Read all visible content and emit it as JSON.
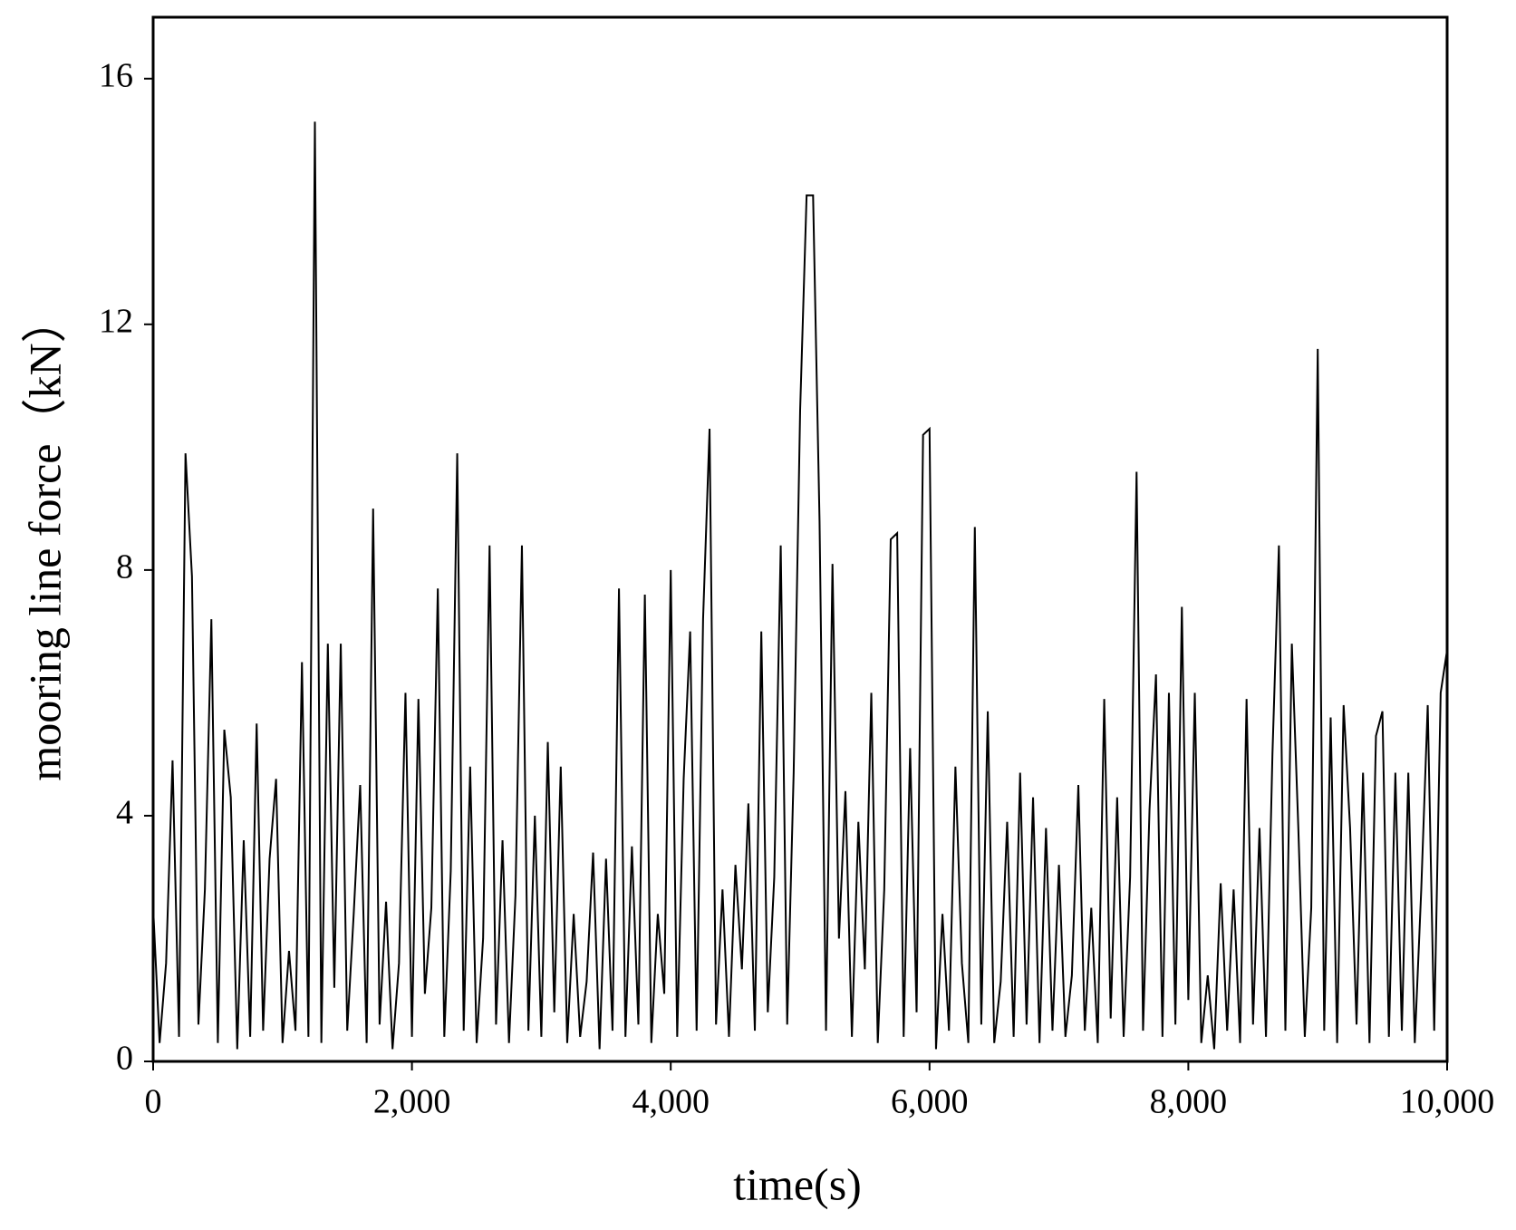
{
  "chart_data": {
    "type": "line",
    "xlabel": "time(s)",
    "ylabel": "mooring line force（kN）",
    "x": [
      0,
      50,
      100,
      150,
      200,
      250,
      300,
      350,
      400,
      450,
      500,
      550,
      600,
      650,
      700,
      750,
      800,
      850,
      900,
      950,
      1000,
      1050,
      1100,
      1150,
      1200,
      1250,
      1300,
      1350,
      1400,
      1450,
      1500,
      1550,
      1600,
      1650,
      1700,
      1750,
      1800,
      1850,
      1900,
      1950,
      2000,
      2050,
      2100,
      2150,
      2200,
      2250,
      2300,
      2350,
      2400,
      2450,
      2500,
      2550,
      2600,
      2650,
      2700,
      2750,
      2800,
      2850,
      2900,
      2950,
      3000,
      3050,
      3100,
      3150,
      3200,
      3250,
      3300,
      3350,
      3400,
      3450,
      3500,
      3550,
      3600,
      3650,
      3700,
      3750,
      3800,
      3850,
      3900,
      3950,
      4000,
      4050,
      4100,
      4150,
      4200,
      4250,
      4300,
      4350,
      4400,
      4450,
      4500,
      4550,
      4600,
      4650,
      4700,
      4750,
      4800,
      4850,
      4900,
      4950,
      5000,
      5050,
      5100,
      5150,
      5200,
      5250,
      5300,
      5350,
      5400,
      5450,
      5500,
      5550,
      5600,
      5650,
      5700,
      5750,
      5800,
      5850,
      5900,
      5950,
      6000,
      6050,
      6100,
      6150,
      6200,
      6250,
      6300,
      6350,
      6400,
      6450,
      6500,
      6550,
      6600,
      6650,
      6700,
      6750,
      6800,
      6850,
      6900,
      6950,
      7000,
      7050,
      7100,
      7150,
      7200,
      7250,
      7300,
      7350,
      7400,
      7450,
      7500,
      7550,
      7600,
      7650,
      7700,
      7750,
      7800,
      7850,
      7900,
      7950,
      8000,
      8050,
      8100,
      8150,
      8200,
      8250,
      8300,
      8350,
      8400,
      8450,
      8500,
      8550,
      8600,
      8650,
      8700,
      8750,
      8800,
      8850,
      8900,
      8950,
      9000,
      9050,
      9100,
      9150,
      9200,
      9250,
      9300,
      9350,
      9400,
      9450,
      9500,
      9550,
      9600,
      9650,
      9700,
      9750,
      9800,
      9850,
      9900,
      9950,
      10000
    ],
    "series": [
      {
        "name": "mooring line force",
        "color": "#000000",
        "values": [
          2.5,
          0.3,
          1.6,
          4.9,
          0.4,
          9.9,
          7.9,
          0.6,
          2.8,
          7.2,
          0.3,
          5.4,
          4.3,
          0.2,
          3.6,
          0.4,
          5.5,
          0.5,
          3.3,
          4.6,
          0.3,
          1.8,
          0.5,
          6.5,
          0.4,
          15.3,
          0.3,
          6.8,
          1.2,
          6.8,
          0.5,
          2.4,
          4.5,
          0.3,
          9.0,
          0.6,
          2.6,
          0.2,
          1.6,
          6.0,
          0.4,
          5.9,
          1.1,
          2.5,
          7.7,
          0.4,
          3.1,
          9.9,
          0.5,
          4.8,
          0.3,
          2.0,
          8.4,
          0.6,
          3.6,
          0.3,
          2.7,
          8.4,
          0.5,
          4.0,
          0.4,
          5.2,
          0.8,
          4.8,
          0.3,
          2.4,
          0.4,
          1.3,
          3.4,
          0.2,
          3.3,
          0.5,
          7.7,
          0.4,
          3.5,
          0.6,
          7.6,
          0.3,
          2.4,
          1.1,
          8.0,
          0.4,
          4.6,
          7.0,
          0.5,
          7.2,
          10.3,
          0.6,
          2.8,
          0.4,
          3.2,
          1.5,
          4.2,
          0.5,
          7.0,
          0.8,
          3.0,
          8.4,
          0.6,
          4.7,
          10.6,
          14.1,
          14.1,
          8.8,
          0.5,
          8.1,
          2.0,
          4.4,
          0.4,
          3.9,
          1.5,
          6.0,
          0.3,
          2.8,
          8.5,
          8.6,
          0.4,
          5.1,
          0.8,
          10.2,
          10.3,
          0.2,
          2.4,
          0.5,
          4.8,
          1.6,
          0.3,
          8.7,
          0.6,
          5.7,
          0.3,
          1.3,
          3.9,
          0.4,
          4.7,
          0.6,
          4.3,
          0.3,
          3.8,
          0.5,
          3.2,
          0.4,
          1.4,
          4.5,
          0.5,
          2.5,
          0.3,
          5.9,
          0.7,
          4.3,
          0.4,
          3.0,
          9.6,
          0.5,
          4.1,
          6.3,
          0.4,
          6.0,
          0.6,
          7.4,
          1.0,
          6.0,
          0.3,
          1.4,
          0.2,
          2.9,
          0.5,
          2.8,
          0.3,
          5.9,
          0.6,
          3.8,
          0.4,
          5.0,
          8.4,
          0.5,
          6.8,
          3.8,
          0.4,
          2.5,
          11.6,
          0.5,
          5.6,
          0.3,
          5.8,
          3.8,
          0.6,
          4.7,
          0.3,
          5.3,
          5.7,
          0.4,
          4.7,
          0.5,
          4.7,
          0.3,
          2.8,
          5.8,
          0.5,
          6.0,
          6.7
        ]
      }
    ],
    "xlim": [
      0,
      10000
    ],
    "xticks": [
      0,
      {
        "value": 2000,
        "label": "2,000"
      },
      {
        "value": 4000,
        "label": "4,000"
      },
      {
        "value": 6000,
        "label": "6,000"
      },
      {
        "value": 8000,
        "label": "8,000"
      },
      {
        "value": 10000,
        "label": "10,000"
      }
    ],
    "ylim": [
      0,
      17
    ],
    "yticks": [
      0,
      4,
      8,
      12,
      16
    ]
  }
}
